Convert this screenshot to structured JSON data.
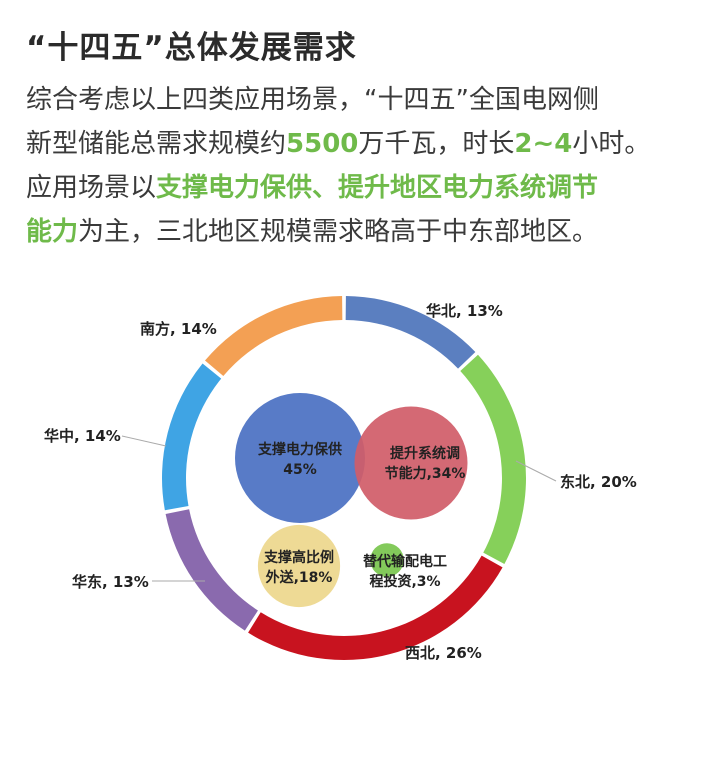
{
  "header": {
    "title": "“十四五”总体发展需求"
  },
  "body": {
    "line1": "综合考虑以上四类应用场景，“十四五”全国电网侧",
    "line2_a": "新型储能总需求规模约",
    "line2_b": "5500",
    "line2_c": "万千瓦，时长",
    "line2_d": "2~4",
    "line2_e": "小时。",
    "line3_a": "应用场景以",
    "line3_b": "支撑电力保供、提升地区电力系统调节",
    "line4_a": "能力",
    "line4_b": "为主，三北地区规模需求略高于中东部地区。"
  },
  "colors": {
    "accent_green": "#6fba4a",
    "华北": "#5b7fc0",
    "东北": "#86d05a",
    "西北": "#c8131f",
    "华东": "#8a6aae",
    "华中": "#3fa4e4",
    "南方": "#f3a054"
  },
  "chart_data": [
    {
      "type": "pie",
      "variant": "donut",
      "categories": [
        "华北",
        "东北",
        "西北",
        "华东",
        "华中",
        "南方"
      ],
      "values": [
        13,
        20,
        26,
        13,
        14,
        14
      ],
      "labels": [
        "华北, 13%",
        "东北, 20%",
        "西北, 26%",
        "华东, 13%",
        "华中, 14%",
        "南方, 14%"
      ],
      "colors": [
        "#5b7fc0",
        "#86d05a",
        "#c8131f",
        "#8a6aae",
        "#3fa4e4",
        "#f3a054"
      ],
      "unit": "%"
    },
    {
      "type": "bubble",
      "categories": [
        "支撑电力保供",
        "提升系统调节能力",
        "支撑高比例外送",
        "替代输配电工程投资"
      ],
      "values": [
        45,
        34,
        18,
        3
      ],
      "unit": "%",
      "labels": [
        [
          "支撑电力保供",
          "45%"
        ],
        [
          "提升系统调",
          "节能力,34%"
        ],
        [
          "支撑高比例",
          "外送,18%"
        ],
        [
          "替代输配电工",
          "程投资,3%"
        ]
      ],
      "colors": [
        "#4f74c4",
        "#d05c68",
        "#ecd68a",
        "#7cc752"
      ]
    }
  ]
}
